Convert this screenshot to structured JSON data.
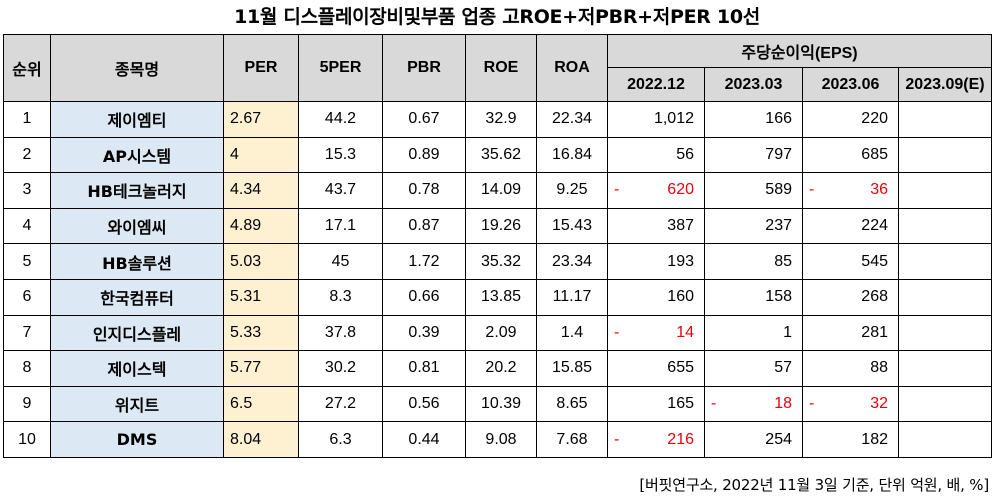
{
  "title": "11월  디스플레이장비및부품 업종 고ROE+저PBR+저PER 10선",
  "headers": {
    "rank": "순위",
    "name": "종목명",
    "per": "PER",
    "per5": "5PER",
    "pbr": "PBR",
    "roe": "ROE",
    "roa": "ROA",
    "eps_group": "주당순이익(EPS)",
    "eps_periods": [
      "2022.12",
      "2023.03",
      "2023.06",
      "2023.09(E)"
    ]
  },
  "rows": [
    {
      "rank": "1",
      "name": "제이엠티",
      "per": "2.67",
      "per5": "44.2",
      "pbr": "0.67",
      "roe": "32.9",
      "roa": "22.34",
      "eps": [
        {
          "sign": "",
          "value": "1,012",
          "neg": false
        },
        {
          "sign": "",
          "value": "166",
          "neg": false
        },
        {
          "sign": "",
          "value": "220",
          "neg": false
        },
        {
          "sign": "",
          "value": "",
          "neg": false
        }
      ]
    },
    {
      "rank": "2",
      "name": "AP시스템",
      "per": "4",
      "per5": "15.3",
      "pbr": "0.89",
      "roe": "35.62",
      "roa": "16.84",
      "eps": [
        {
          "sign": "",
          "value": "56",
          "neg": false
        },
        {
          "sign": "",
          "value": "797",
          "neg": false
        },
        {
          "sign": "",
          "value": "685",
          "neg": false
        },
        {
          "sign": "",
          "value": "",
          "neg": false
        }
      ]
    },
    {
      "rank": "3",
      "name": "HB테크놀러지",
      "per": "4.34",
      "per5": "43.7",
      "pbr": "0.78",
      "roe": "14.09",
      "roa": "9.25",
      "eps": [
        {
          "sign": "-",
          "value": "620",
          "neg": true
        },
        {
          "sign": "",
          "value": "589",
          "neg": false
        },
        {
          "sign": "-",
          "value": "36",
          "neg": true
        },
        {
          "sign": "",
          "value": "",
          "neg": false
        }
      ]
    },
    {
      "rank": "4",
      "name": "와이엠씨",
      "per": "4.89",
      "per5": "17.1",
      "pbr": "0.87",
      "roe": "19.26",
      "roa": "15.43",
      "eps": [
        {
          "sign": "",
          "value": "387",
          "neg": false
        },
        {
          "sign": "",
          "value": "237",
          "neg": false
        },
        {
          "sign": "",
          "value": "224",
          "neg": false
        },
        {
          "sign": "",
          "value": "",
          "neg": false
        }
      ]
    },
    {
      "rank": "5",
      "name": "HB솔루션",
      "per": "5.03",
      "per5": "45",
      "pbr": "1.72",
      "roe": "35.32",
      "roa": "23.34",
      "eps": [
        {
          "sign": "",
          "value": "193",
          "neg": false
        },
        {
          "sign": "",
          "value": "85",
          "neg": false
        },
        {
          "sign": "",
          "value": "545",
          "neg": false
        },
        {
          "sign": "",
          "value": "",
          "neg": false
        }
      ]
    },
    {
      "rank": "6",
      "name": "한국컴퓨터",
      "per": "5.31",
      "per5": "8.3",
      "pbr": "0.66",
      "roe": "13.85",
      "roa": "11.17",
      "eps": [
        {
          "sign": "",
          "value": "160",
          "neg": false
        },
        {
          "sign": "",
          "value": "158",
          "neg": false
        },
        {
          "sign": "",
          "value": "268",
          "neg": false
        },
        {
          "sign": "",
          "value": "",
          "neg": false
        }
      ]
    },
    {
      "rank": "7",
      "name": "인지디스플레",
      "per": "5.33",
      "per5": "37.8",
      "pbr": "0.39",
      "roe": "2.09",
      "roa": "1.4",
      "eps": [
        {
          "sign": "-",
          "value": "14",
          "neg": true
        },
        {
          "sign": "",
          "value": "1",
          "neg": false
        },
        {
          "sign": "",
          "value": "281",
          "neg": false
        },
        {
          "sign": "",
          "value": "",
          "neg": false
        }
      ]
    },
    {
      "rank": "8",
      "name": "제이스텍",
      "per": "5.77",
      "per5": "30.2",
      "pbr": "0.81",
      "roe": "20.2",
      "roa": "15.85",
      "eps": [
        {
          "sign": "",
          "value": "655",
          "neg": false
        },
        {
          "sign": "",
          "value": "57",
          "neg": false
        },
        {
          "sign": "",
          "value": "88",
          "neg": false
        },
        {
          "sign": "",
          "value": "",
          "neg": false
        }
      ]
    },
    {
      "rank": "9",
      "name": "위지트",
      "per": "6.5",
      "per5": "27.2",
      "pbr": "0.56",
      "roe": "10.39",
      "roa": "8.65",
      "eps": [
        {
          "sign": "",
          "value": "165",
          "neg": false
        },
        {
          "sign": "-",
          "value": "18",
          "neg": true
        },
        {
          "sign": "-",
          "value": "32",
          "neg": true
        },
        {
          "sign": "",
          "value": "",
          "neg": false
        }
      ]
    },
    {
      "rank": "10",
      "name": "DMS",
      "per": "8.04",
      "per5": "6.3",
      "pbr": "0.44",
      "roe": "9.08",
      "roa": "7.68",
      "eps": [
        {
          "sign": "-",
          "value": "216",
          "neg": true
        },
        {
          "sign": "",
          "value": "254",
          "neg": false
        },
        {
          "sign": "",
          "value": "182",
          "neg": false
        },
        {
          "sign": "",
          "value": "",
          "neg": false
        }
      ]
    }
  ],
  "footer": "[버핏연구소, 2022년 11월 3일 기준, 단위 억원, 배, %]",
  "colors": {
    "header_bg": "#d9d9d9",
    "name_bg": "#dce9f5",
    "per_bg": "#fdf1d1",
    "negative": "#e8000b"
  }
}
